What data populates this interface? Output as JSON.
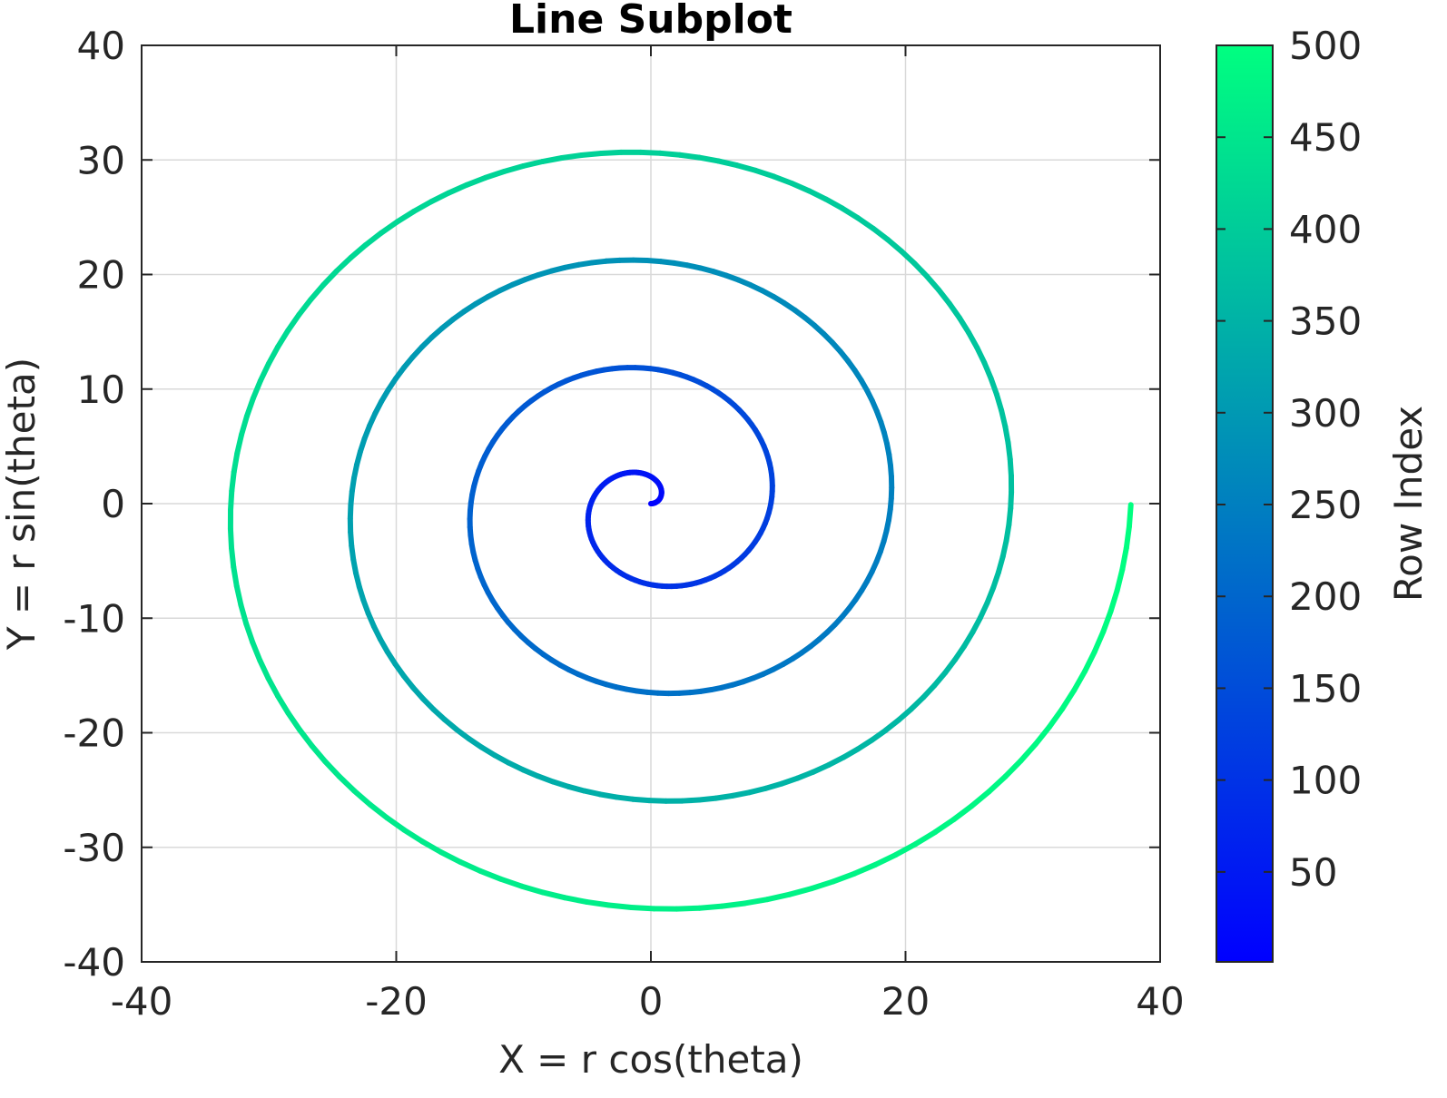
{
  "chart_data": {
    "type": "line",
    "title": "Line Subplot",
    "xlabel": "X = r cos(theta)",
    "ylabel": "Y = r sin(theta)",
    "xlim": [
      -40,
      40
    ],
    "ylim": [
      -40,
      40
    ],
    "xticks": [
      -40,
      -20,
      0,
      20,
      40
    ],
    "yticks": [
      -40,
      -30,
      -20,
      -10,
      0,
      10,
      20,
      30,
      40
    ],
    "xtick_labels": [
      "-40",
      "-20",
      "0",
      "20",
      "40"
    ],
    "ytick_labels": [
      "-40",
      "-30",
      "-20",
      "-10",
      "0",
      "10",
      "20",
      "30",
      "40"
    ],
    "grid": true,
    "series": [
      {
        "curve": "archimedean spiral",
        "rows": 500,
        "theta_range": [
          0,
          25.13
        ],
        "r_range": [
          0,
          37.7
        ],
        "x_start": 0,
        "y_start": 0,
        "x_end": 37.7,
        "y_end": 0,
        "color_by": "row index"
      }
    ],
    "colorbar": {
      "label": "Row Index",
      "range": [
        1,
        500
      ],
      "ticks": [
        50,
        100,
        150,
        200,
        250,
        300,
        350,
        400,
        450,
        500
      ],
      "tick_labels": [
        "50",
        "100",
        "150",
        "200",
        "250",
        "300",
        "350",
        "400",
        "450",
        "500"
      ],
      "colormap": "winter",
      "color_low": "#0000ff",
      "color_high": "#00ff80"
    }
  }
}
